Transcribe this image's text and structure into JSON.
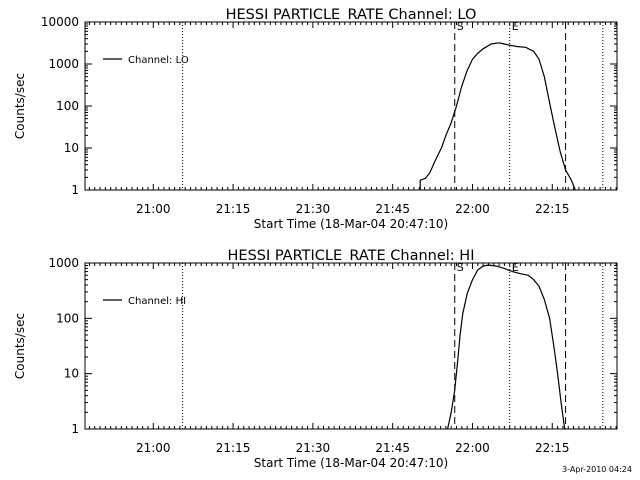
{
  "footer": {
    "date": "3-Apr-2010 04:24"
  },
  "chart_data": [
    {
      "type": "line",
      "title": "HESSI PARTICLE_RATE Channel: LO",
      "xlabel": "Start Time (18-Mar-04 20:47:10)",
      "ylabel": "Counts/sec",
      "y_scale": "log",
      "xlim": [
        "20:47:10",
        "22:27:10"
      ],
      "ylim": [
        1,
        10000
      ],
      "x_ticks": [
        "21:00",
        "21:15",
        "21:30",
        "21:45",
        "22:00",
        "22:15"
      ],
      "y_ticks": [
        "1",
        "10",
        "100",
        "1000",
        "10000"
      ],
      "legend": {
        "position": "top-left",
        "entries": [
          "Channel: LO"
        ]
      },
      "markers": [
        {
          "label": "S",
          "time": "21:56:40",
          "style": "dashed"
        },
        {
          "label": "E",
          "time": "22:07:00",
          "style": "dotted"
        },
        {
          "label": "",
          "time": "22:17:30",
          "style": "dashed"
        },
        {
          "label": "",
          "time": "21:05:30",
          "style": "dotted"
        },
        {
          "label": "",
          "time": "22:24:30",
          "style": "dotted"
        }
      ],
      "series": [
        {
          "name": "Channel: LO",
          "points": [
            [
              "21:50:10",
              1
            ],
            [
              "21:50:10",
              1.7
            ],
            [
              "21:51:10",
              1.9
            ],
            [
              "21:52:00",
              2.6
            ],
            [
              "21:53:00",
              5
            ],
            [
              "21:54:10",
              10
            ],
            [
              "21:55:00",
              20
            ],
            [
              "21:56:00",
              40
            ],
            [
              "21:57:00",
              100
            ],
            [
              "21:58:00",
              300
            ],
            [
              "21:59:00",
              700
            ],
            [
              "22:00:00",
              1300
            ],
            [
              "22:01:00",
              1800
            ],
            [
              "22:02:00",
              2300
            ],
            [
              "22:03:30",
              3000
            ],
            [
              "22:05:00",
              3200
            ],
            [
              "22:06:00",
              3000
            ],
            [
              "22:07:00",
              2800
            ],
            [
              "22:08:30",
              2600
            ],
            [
              "22:10:00",
              2500
            ],
            [
              "22:11:30",
              2000
            ],
            [
              "22:12:30",
              1300
            ],
            [
              "22:13:30",
              500
            ],
            [
              "22:14:30",
              120
            ],
            [
              "22:15:30",
              30
            ],
            [
              "22:16:30",
              8
            ],
            [
              "22:17:30",
              3
            ],
            [
              "22:18:30",
              1.8
            ],
            [
              "22:19:20",
              1
            ]
          ]
        }
      ]
    },
    {
      "type": "line",
      "title": "HESSI PARTICLE_RATE Channel: HI",
      "xlabel": "Start Time (18-Mar-04 20:47:10)",
      "ylabel": "Counts/sec",
      "y_scale": "log",
      "xlim": [
        "20:47:10",
        "22:27:10"
      ],
      "ylim": [
        1,
        1000
      ],
      "x_ticks": [
        "21:00",
        "21:15",
        "21:30",
        "21:45",
        "22:00",
        "22:15"
      ],
      "y_ticks": [
        "1",
        "10",
        "100",
        "1000"
      ],
      "legend": {
        "position": "top-left",
        "entries": [
          "Channel: HI"
        ]
      },
      "markers": [
        {
          "label": "S",
          "time": "21:56:40",
          "style": "dashed"
        },
        {
          "label": "E",
          "time": "22:07:00",
          "style": "dotted"
        },
        {
          "label": "",
          "time": "22:17:30",
          "style": "dashed"
        },
        {
          "label": "",
          "time": "21:05:30",
          "style": "dotted"
        },
        {
          "label": "",
          "time": "22:24:30",
          "style": "dotted"
        }
      ],
      "series": [
        {
          "name": "Channel: HI",
          "points": [
            [
              "21:55:20",
              1
            ],
            [
              "21:56:00",
              2
            ],
            [
              "21:56:40",
              5
            ],
            [
              "21:57:10",
              15
            ],
            [
              "21:57:40",
              50
            ],
            [
              "21:58:10",
              120
            ],
            [
              "21:59:00",
              280
            ],
            [
              "22:00:00",
              500
            ],
            [
              "22:01:00",
              750
            ],
            [
              "22:02:00",
              880
            ],
            [
              "22:03:00",
              920
            ],
            [
              "22:04:30",
              880
            ],
            [
              "22:06:00",
              800
            ],
            [
              "22:07:30",
              700
            ],
            [
              "22:09:00",
              640
            ],
            [
              "22:10:30",
              600
            ],
            [
              "22:11:30",
              500
            ],
            [
              "22:12:30",
              380
            ],
            [
              "22:13:30",
              220
            ],
            [
              "22:14:30",
              100
            ],
            [
              "22:15:20",
              30
            ],
            [
              "22:16:00",
              10
            ],
            [
              "22:16:40",
              3
            ],
            [
              "22:17:20",
              1
            ]
          ]
        }
      ]
    }
  ]
}
